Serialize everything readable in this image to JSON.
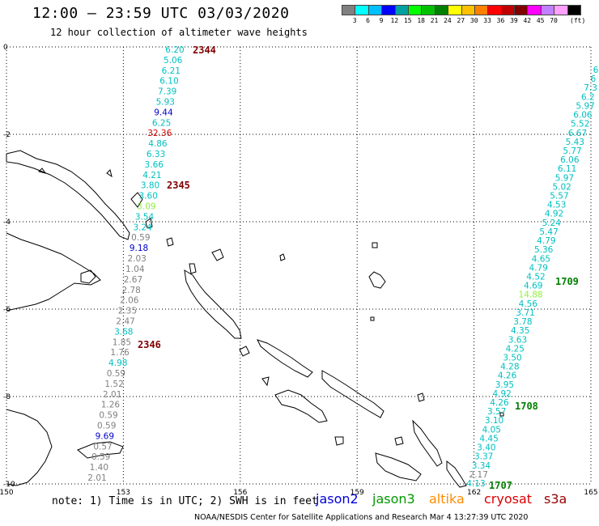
{
  "header": {
    "title": "12:00 – 23:59 UTC 03/03/2020",
    "subtitle": "12 hour collection of altimeter wave heights"
  },
  "color_scale": {
    "colors": [
      "#808080",
      "#00ffff",
      "#00c0ff",
      "#0000ff",
      "#00a0a0",
      "#00ff00",
      "#00c000",
      "#008000",
      "#ffff00",
      "#ffc000",
      "#ff8000",
      "#ff0000",
      "#c00000",
      "#800000",
      "#ff00ff",
      "#c080ff",
      "#ffa0ff",
      "#000000"
    ],
    "labels": [
      "3",
      "6",
      "9",
      "12",
      "15",
      "18",
      "21",
      "24",
      "27",
      "30",
      "33",
      "36",
      "39",
      "42",
      "45",
      "70"
    ],
    "unit": "(ft)"
  },
  "axes": {
    "x_ticks": [
      "150",
      "153",
      "156",
      "159",
      "162",
      "165"
    ],
    "y_ticks": [
      "0",
      "-2",
      "-4",
      "-6",
      "-8",
      "-10"
    ]
  },
  "tracks": [
    {
      "name": "jason3-pass-a",
      "readings": [
        {
          "v": "6.20",
          "c": "#00c0c0"
        },
        {
          "v": "5.06",
          "c": "#00c0c0"
        },
        {
          "v": "6.21",
          "c": "#00c0c0"
        },
        {
          "v": "6.10",
          "c": "#00c0c0"
        },
        {
          "v": "7.39",
          "c": "#00c0c0"
        },
        {
          "v": "5.93",
          "c": "#00c0c0"
        },
        {
          "v": "9.44",
          "c": "#0000cc"
        },
        {
          "v": "6.25",
          "c": "#00c0c0"
        },
        {
          "v": "32.36",
          "c": "#cc0000"
        },
        {
          "v": "4.86",
          "c": "#00c0c0"
        },
        {
          "v": "6.33",
          "c": "#00c0c0"
        },
        {
          "v": "3.66",
          "c": "#00c0c0"
        },
        {
          "v": "4.21",
          "c": "#00c0c0"
        },
        {
          "v": "3.80",
          "c": "#00c0c0"
        },
        {
          "v": "3.60",
          "c": "#00c0c0"
        },
        {
          "v": "3.09",
          "c": "#90ee40"
        },
        {
          "v": "3.54",
          "c": "#00c0c0"
        },
        {
          "v": "3.24",
          "c": "#00c0c0"
        },
        {
          "v": "0.59",
          "c": "#808080"
        },
        {
          "v": "9.18",
          "c": "#0000cc"
        },
        {
          "v": "2.03",
          "c": "#808080"
        },
        {
          "v": "1.04",
          "c": "#808080"
        },
        {
          "v": "2.67",
          "c": "#808080"
        },
        {
          "v": "2.78",
          "c": "#808080"
        },
        {
          "v": "2.06",
          "c": "#808080"
        },
        {
          "v": "2.35",
          "c": "#808080"
        },
        {
          "v": "2.47",
          "c": "#808080"
        },
        {
          "v": "3.68",
          "c": "#00c0c0"
        },
        {
          "v": "1.85",
          "c": "#808080"
        },
        {
          "v": "1.76",
          "c": "#808080"
        },
        {
          "v": "4.98",
          "c": "#00c0c0"
        },
        {
          "v": "0.59",
          "c": "#808080"
        },
        {
          "v": "1.52",
          "c": "#808080"
        },
        {
          "v": "2.01",
          "c": "#808080"
        },
        {
          "v": "1.26",
          "c": "#808080"
        },
        {
          "v": "0.59",
          "c": "#808080"
        },
        {
          "v": "0.59",
          "c": "#808080"
        },
        {
          "v": "9.69",
          "c": "#0000cc"
        },
        {
          "v": "0.57",
          "c": "#808080"
        },
        {
          "v": "0.59",
          "c": "#808080"
        },
        {
          "v": "1.40",
          "c": "#808080"
        },
        {
          "v": "2.01",
          "c": "#808080"
        }
      ]
    },
    {
      "name": "jason3-pass-b",
      "readings": [
        {
          "v": "4.13",
          "c": "#00c0c0"
        },
        {
          "v": "2.17",
          "c": "#808080"
        },
        {
          "v": "3.34",
          "c": "#00c0c0"
        },
        {
          "v": "3.37",
          "c": "#00c0c0"
        },
        {
          "v": "3.40",
          "c": "#00c0c0"
        },
        {
          "v": "4.45",
          "c": "#00c0c0"
        },
        {
          "v": "4.05",
          "c": "#00c0c0"
        },
        {
          "v": "3.10",
          "c": "#00c0c0"
        },
        {
          "v": "3.57",
          "c": "#00c0c0"
        },
        {
          "v": "4.26",
          "c": "#00c0c0"
        },
        {
          "v": "4.92",
          "c": "#00c0c0"
        },
        {
          "v": "3.95",
          "c": "#00c0c0"
        },
        {
          "v": "4.26",
          "c": "#00c0c0"
        },
        {
          "v": "4.28",
          "c": "#00c0c0"
        },
        {
          "v": "3.50",
          "c": "#00c0c0"
        },
        {
          "v": "4.25",
          "c": "#00c0c0"
        },
        {
          "v": "3.63",
          "c": "#00c0c0"
        },
        {
          "v": "4.35",
          "c": "#00c0c0"
        },
        {
          "v": "3.78",
          "c": "#00c0c0"
        },
        {
          "v": "3.71",
          "c": "#00c0c0"
        },
        {
          "v": "4.56",
          "c": "#00c0c0"
        },
        {
          "v": "14.88",
          "c": "#90ee40"
        },
        {
          "v": "4.69",
          "c": "#00c0c0"
        },
        {
          "v": "4.52",
          "c": "#00c0c0"
        },
        {
          "v": "4.79",
          "c": "#00c0c0"
        },
        {
          "v": "4.65",
          "c": "#00c0c0"
        },
        {
          "v": "5.36",
          "c": "#00c0c0"
        },
        {
          "v": "4.79",
          "c": "#00c0c0"
        },
        {
          "v": "5.47",
          "c": "#00c0c0"
        },
        {
          "v": "5.24",
          "c": "#00c0c0"
        },
        {
          "v": "4.92",
          "c": "#00c0c0"
        },
        {
          "v": "4.53",
          "c": "#00c0c0"
        },
        {
          "v": "5.57",
          "c": "#00c0c0"
        },
        {
          "v": "5.02",
          "c": "#00c0c0"
        },
        {
          "v": "5.97",
          "c": "#00c0c0"
        },
        {
          "v": "6.11",
          "c": "#00c0c0"
        },
        {
          "v": "6.06",
          "c": "#00c0c0"
        },
        {
          "v": "5.77",
          "c": "#00c0c0"
        },
        {
          "v": "5.43",
          "c": "#00c0c0"
        },
        {
          "v": "6.67",
          "c": "#00c0c0"
        },
        {
          "v": "5.52",
          "c": "#00c0c0"
        },
        {
          "v": "6.06",
          "c": "#00c0c0"
        },
        {
          "v": "5.97",
          "c": "#00c0c0"
        },
        {
          "v": "6.2",
          "c": "#00c0c0"
        },
        {
          "v": "7.3",
          "c": "#00c0c0"
        },
        {
          "v": "6",
          "c": "#00c0c0"
        },
        {
          "v": "6",
          "c": "#00c0c0"
        }
      ]
    }
  ],
  "time_labels": [
    {
      "text": "2344",
      "color": "#800000"
    },
    {
      "text": "2345",
      "color": "#800000"
    },
    {
      "text": "2346",
      "color": "#800000"
    },
    {
      "text": "1709",
      "color": "#008000"
    },
    {
      "text": "1708",
      "color": "#008000"
    },
    {
      "text": "1707",
      "color": "#008000"
    }
  ],
  "footer": {
    "note": "note: 1) Time is in UTC; 2) SWH is in feet",
    "credit": "NOAA/NESDIS Center for Satellite Applications and Research   Mar  4 13:27:39 UTC 2020"
  },
  "satellite_legend": [
    {
      "name": "jason2",
      "color": "#0000dd"
    },
    {
      "name": "jason3",
      "color": "#009900"
    },
    {
      "name": "altika",
      "color": "#ff8c00"
    },
    {
      "name": "cryosat",
      "color": "#dd0000"
    },
    {
      "name": "s3a",
      "color": "#990000"
    }
  ]
}
